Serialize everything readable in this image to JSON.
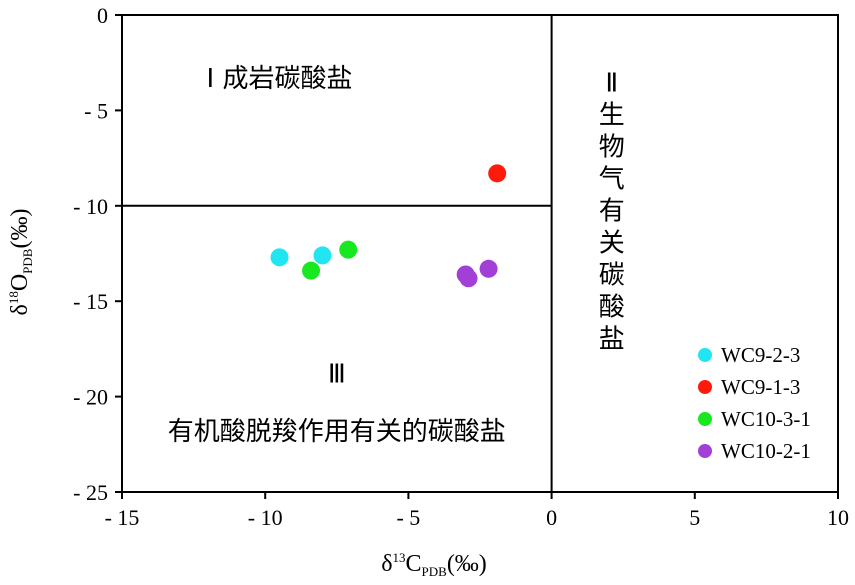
{
  "chart_data": {
    "type": "scatter",
    "xlabel": "δ13CPDB(‰)",
    "ylabel": "δ18OPDB(‰)",
    "xlabel_parts": {
      "symbol": "δ",
      "sup": "13",
      "main": "C",
      "sub": "PDB",
      "unit": "(‰)"
    },
    "ylabel_parts": {
      "symbol": "δ",
      "sup": "18",
      "main": "O",
      "sub": "PDB",
      "unit": "(‰)"
    },
    "xlim": [
      -15,
      10
    ],
    "ylim": [
      -25,
      0
    ],
    "x_ticks": [
      -15,
      -10,
      -5,
      0,
      5,
      10
    ],
    "y_ticks": [
      0,
      -5,
      -10,
      -15,
      -20,
      -25
    ],
    "x_tick_labels": [
      "- 15",
      "- 10",
      "- 5",
      "0",
      "5",
      "10"
    ],
    "y_tick_labels": [
      "0",
      "- 5",
      "- 10",
      "- 15",
      "- 20",
      "- 25"
    ],
    "region_lines": [
      {
        "from": [
          0,
          0
        ],
        "to": [
          0,
          -25
        ]
      },
      {
        "from": [
          -15,
          -10
        ],
        "to": [
          0,
          -10
        ]
      }
    ],
    "regions": [
      {
        "label": "Ⅰ 成岩碳酸盐",
        "x": -9.5,
        "y": -3.3
      },
      {
        "label": "Ⅱ生物气有关碳酸盐",
        "x": 2.1,
        "y": -4,
        "vertical": true
      },
      {
        "label": "Ⅲ",
        "x": -7.5,
        "y": -18.8
      },
      {
        "label": "有机酸脱羧作用有关的碳酸盐",
        "x": -7.5,
        "y": -21.8
      }
    ],
    "series": [
      {
        "name": "WC9-2-3",
        "color": "#22e5f2",
        "points": [
          [
            -9.5,
            -12.7
          ],
          [
            -8.0,
            -12.6
          ]
        ]
      },
      {
        "name": "WC9-1-3",
        "color": "#ff1a0d",
        "points": [
          [
            -1.9,
            -8.3
          ]
        ]
      },
      {
        "name": "WC10-3-1",
        "color": "#18e820",
        "points": [
          [
            -8.4,
            -13.4
          ],
          [
            -7.1,
            -12.3
          ]
        ]
      },
      {
        "name": "WC10-2-1",
        "color": "#a23fd6",
        "points": [
          [
            -3.0,
            -13.6
          ],
          [
            -2.9,
            -13.8
          ],
          [
            -2.2,
            -13.3
          ]
        ]
      }
    ],
    "legend_position": "bottom-right",
    "grid": false
  }
}
